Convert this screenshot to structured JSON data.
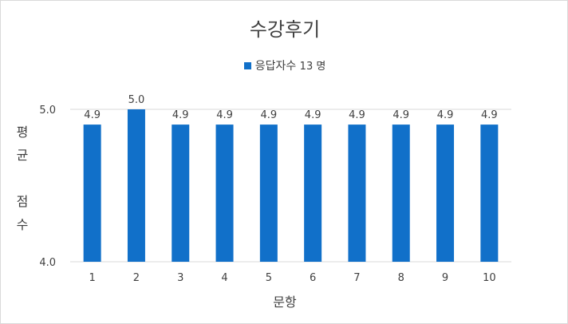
{
  "chart_data": {
    "type": "bar",
    "title": "수강후기",
    "legend": {
      "label": "응답자수",
      "count": "13 명",
      "position": "top"
    },
    "xlabel": "문항",
    "ylabel": "평균점수",
    "ylabel_chars": [
      "평",
      "균",
      "점",
      "수"
    ],
    "categories": [
      "1",
      "2",
      "3",
      "4",
      "5",
      "6",
      "7",
      "8",
      "9",
      "10"
    ],
    "values": [
      4.9,
      5.0,
      4.9,
      4.9,
      4.9,
      4.9,
      4.9,
      4.9,
      4.9,
      4.9
    ],
    "value_labels": [
      "4.9",
      "5.0",
      "4.9",
      "4.9",
      "4.9",
      "4.9",
      "4.9",
      "4.9",
      "4.9",
      "4.9"
    ],
    "ylim": [
      4.0,
      5.0
    ],
    "yticks": [
      "4.0",
      "5.0"
    ],
    "grid": true,
    "bar_color": "#1170c9"
  }
}
